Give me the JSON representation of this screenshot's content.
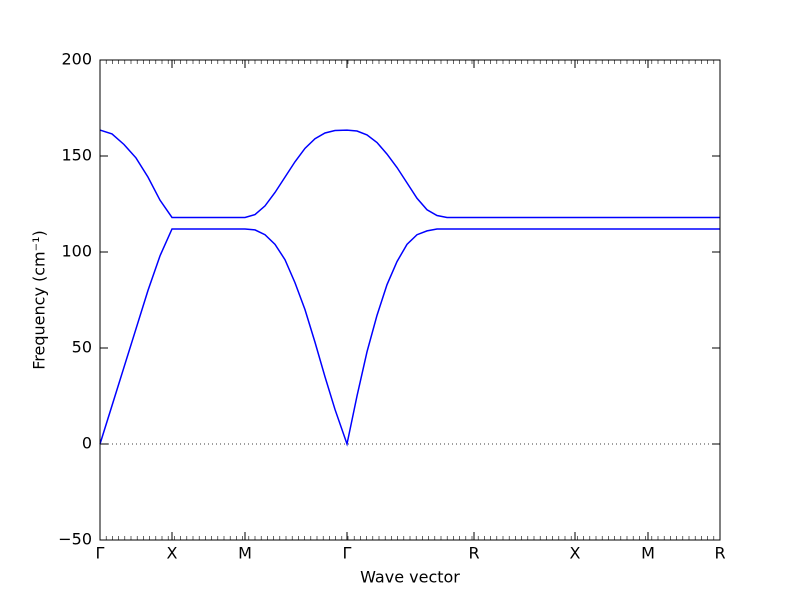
{
  "chart_data": {
    "type": "line",
    "x_label": "Wave vector",
    "y_label": "Frequency (cm⁻¹)",
    "x": [
      0,
      0.12,
      0.24,
      0.36,
      0.48,
      0.6,
      0.72,
      0.9,
      1.1,
      1.3,
      1.45,
      1.55,
      1.65,
      1.75,
      1.85,
      1.95,
      2.05,
      2.15,
      2.25,
      2.35,
      2.47,
      2.57,
      2.67,
      2.77,
      2.87,
      2.97,
      3.07,
      3.17,
      3.27,
      3.37,
      3.47,
      3.6,
      3.74,
      4.75,
      5.48,
      6.2
    ],
    "series": [
      {
        "color": "#0000ff",
        "values": [
          0,
          20,
          40,
          60,
          80,
          98,
          112,
          112,
          112,
          112,
          112,
          111.5,
          109,
          104,
          96,
          84,
          70,
          53,
          35,
          18,
          0,
          25,
          48,
          67,
          83,
          95,
          104,
          109,
          111,
          112,
          112,
          112,
          112,
          112,
          112,
          112
        ]
      },
      {
        "color": "#0000ff",
        "values": [
          163.5,
          161.5,
          156,
          149,
          139,
          127,
          118,
          118,
          118,
          118,
          118,
          119.5,
          124,
          131,
          139,
          147,
          154,
          159,
          162,
          163.3,
          163.5,
          163,
          161,
          157,
          151,
          144,
          136,
          128,
          122,
          119,
          118,
          118,
          118,
          118,
          118,
          118
        ]
      }
    ],
    "hline": 0,
    "xlim": [
      0,
      6.2
    ],
    "xticks": [
      {
        "value": 0,
        "label": "Γ"
      },
      {
        "value": 0.72,
        "label": "X"
      },
      {
        "value": 1.45,
        "label": "M"
      },
      {
        "value": 2.47,
        "label": "Γ"
      },
      {
        "value": 3.74,
        "label": "R"
      },
      {
        "value": 4.75,
        "label": "X"
      },
      {
        "value": 5.48,
        "label": "M"
      },
      {
        "value": 6.2,
        "label": "R"
      }
    ],
    "ylim": [
      -50,
      200
    ],
    "yticks": [
      {
        "value": -50,
        "label": "−50"
      },
      0,
      50,
      100,
      150,
      200
    ]
  }
}
